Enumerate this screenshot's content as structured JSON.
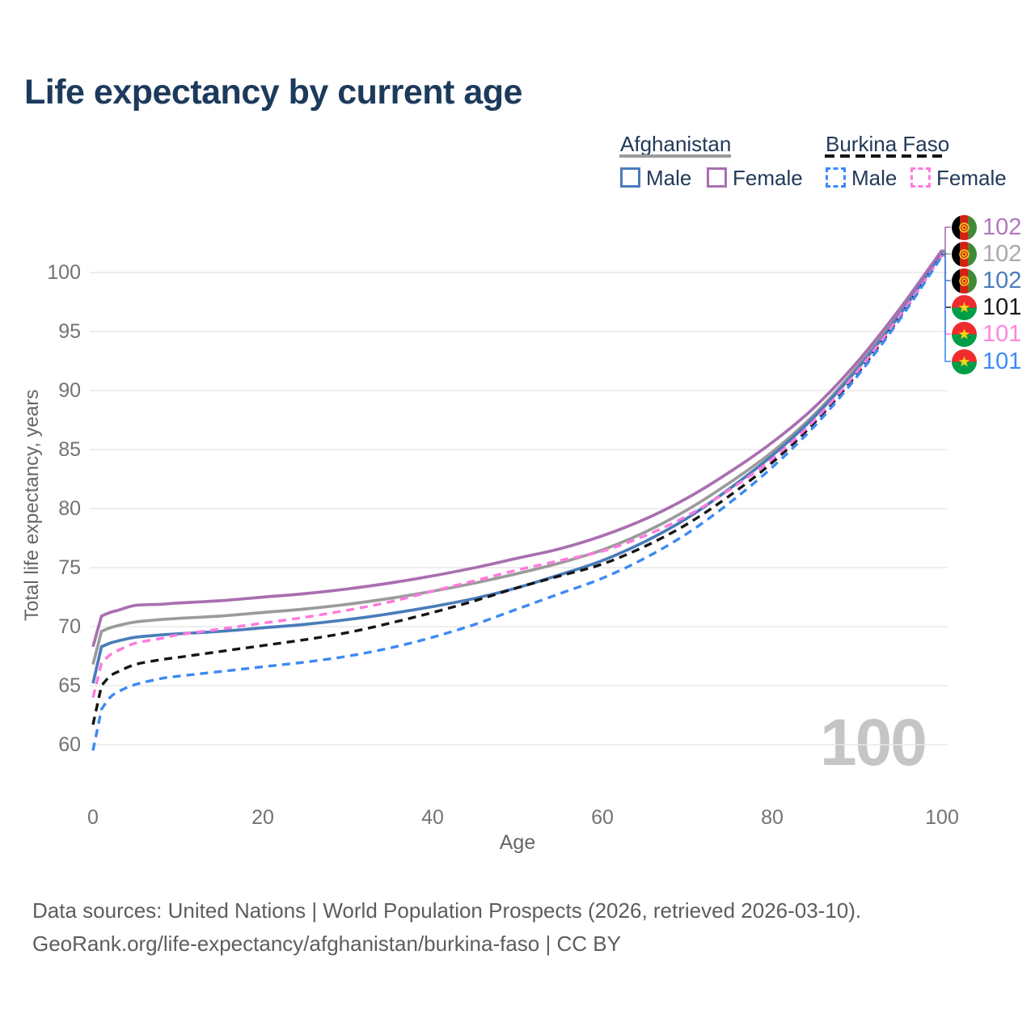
{
  "title": "Life expectancy by current age",
  "watermark": "100",
  "y_axis": {
    "label": "Total life expectancy, years",
    "ticks": [
      100,
      95,
      90,
      85,
      80,
      75,
      70,
      65,
      60
    ]
  },
  "x_axis": {
    "label": "Age",
    "ticks": [
      0,
      20,
      40,
      60,
      80,
      100
    ]
  },
  "legend": {
    "groups": [
      {
        "label": "Afghanistan",
        "line_style": "solid",
        "line_color": "#9b9b9b",
        "items": [
          {
            "label": "Male",
            "color": "#4a7cba",
            "dashed": false
          },
          {
            "label": "Female",
            "color": "#a96fb0",
            "dashed": false
          }
        ]
      },
      {
        "label": "Burkina Faso",
        "line_style": "dashed",
        "line_color": "#141414",
        "items": [
          {
            "label": "Male",
            "color": "#3c8af3",
            "dashed": true
          },
          {
            "label": "Female",
            "color": "#ff79de",
            "dashed": true
          }
        ]
      }
    ]
  },
  "chart_data": {
    "type": "line",
    "title": "Life expectancy by current age",
    "xlabel": "Age",
    "ylabel": "Total life expectancy, years",
    "xlim": [
      0,
      100
    ],
    "ylim": [
      59,
      102.5
    ],
    "x_ticks": [
      0,
      20,
      40,
      60,
      80,
      100
    ],
    "y_ticks": [
      60,
      65,
      70,
      75,
      80,
      85,
      90,
      95,
      100
    ],
    "grid": "horizontal-only",
    "legend_position": "top-right",
    "x": [
      0,
      1,
      2,
      3,
      5,
      8,
      10,
      15,
      20,
      25,
      30,
      35,
      40,
      45,
      50,
      55,
      60,
      65,
      70,
      75,
      80,
      85,
      90,
      95,
      100
    ],
    "series": [
      {
        "name": "Afghanistan Female",
        "country": "Afghanistan",
        "sex": "Female",
        "color": "#a96fb0",
        "label_color": "#b279bd",
        "line_style": "solid",
        "flag": "af",
        "end_label": "102",
        "values": [
          68.3,
          70.9,
          71.2,
          71.4,
          71.8,
          71.9,
          72.0,
          72.2,
          72.5,
          72.8,
          73.2,
          73.7,
          74.3,
          75.0,
          75.8,
          76.6,
          77.7,
          79.1,
          80.9,
          83.1,
          85.6,
          88.6,
          92.4,
          96.9,
          101.9
        ]
      },
      {
        "name": "Afghanistan Both sexes",
        "country": "Afghanistan",
        "sex": "Both sexes",
        "color": "#9b9b9b",
        "label_color": "#a9a9a9",
        "line_style": "solid",
        "flag": "af",
        "end_label": "102",
        "values": [
          66.8,
          69.6,
          69.9,
          70.1,
          70.4,
          70.6,
          70.7,
          70.9,
          71.2,
          71.5,
          71.9,
          72.4,
          73.0,
          73.7,
          74.5,
          75.4,
          76.5,
          78.0,
          79.9,
          82.2,
          84.8,
          88.0,
          92.0,
          96.6,
          101.8
        ]
      },
      {
        "name": "Afghanistan Male",
        "country": "Afghanistan",
        "sex": "Male",
        "color": "#4a7cba",
        "label_color": "#4a7cba",
        "line_style": "solid",
        "flag": "af",
        "end_label": "102",
        "values": [
          65.2,
          68.3,
          68.6,
          68.8,
          69.1,
          69.3,
          69.4,
          69.6,
          69.9,
          70.2,
          70.6,
          71.1,
          71.7,
          72.4,
          73.3,
          74.4,
          75.6,
          77.2,
          79.2,
          81.7,
          84.5,
          87.8,
          91.8,
          96.4,
          101.7
        ]
      },
      {
        "name": "Burkina Faso Both sexes",
        "country": "Burkina Faso",
        "sex": "Both sexes",
        "color": "#141414",
        "label_color": "#1a1a1a",
        "line_style": "dashed",
        "flag": "bf",
        "end_label": "101",
        "values": [
          61.7,
          65.0,
          65.8,
          66.2,
          66.8,
          67.2,
          67.4,
          67.9,
          68.4,
          68.9,
          69.5,
          70.3,
          71.2,
          72.2,
          73.3,
          74.3,
          75.3,
          76.8,
          78.7,
          81.1,
          83.9,
          87.3,
          91.4,
          96.2,
          101.5
        ]
      },
      {
        "name": "Burkina Faso Female",
        "country": "Burkina Faso",
        "sex": "Female",
        "color": "#ff79de",
        "label_color": "#ff85e0",
        "line_style": "dashed",
        "flag": "bf",
        "end_label": "101",
        "values": [
          64.0,
          66.9,
          67.6,
          68.0,
          68.6,
          69.0,
          69.3,
          69.8,
          70.3,
          70.8,
          71.4,
          72.1,
          73.0,
          73.9,
          74.8,
          75.6,
          76.4,
          77.7,
          79.4,
          81.6,
          84.2,
          87.5,
          91.6,
          96.3,
          101.45
        ]
      },
      {
        "name": "Burkina Faso Male",
        "country": "Burkina Faso",
        "sex": "Male",
        "color": "#3c8af3",
        "label_color": "#3d8bf8",
        "line_style": "dashed",
        "flag": "bf",
        "end_label": "101",
        "values": [
          59.5,
          63.0,
          64.0,
          64.5,
          65.1,
          65.6,
          65.8,
          66.2,
          66.6,
          67.0,
          67.5,
          68.2,
          69.1,
          70.2,
          71.5,
          72.8,
          74.1,
          75.8,
          77.9,
          80.5,
          83.5,
          87.0,
          91.2,
          96.0,
          101.4
        ]
      }
    ]
  },
  "footer": {
    "line1": "Data sources: United Nations | World Population Prospects (2026, retrieved 2026-03-10).",
    "line2": "GeoRank.org/life-expectancy/afghanistan/burkina-faso | CC BY"
  }
}
